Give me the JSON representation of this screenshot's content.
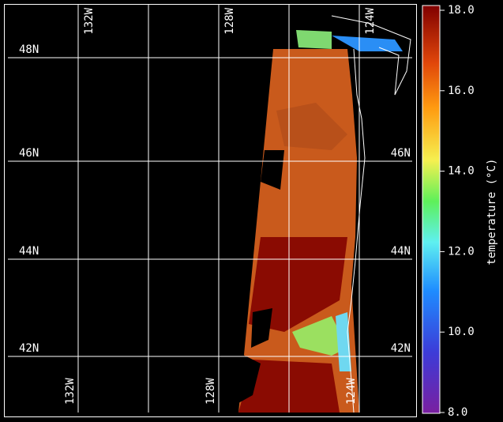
{
  "map": {
    "lat_lines": [
      {
        "value": 48,
        "label": "48N"
      },
      {
        "value": 46,
        "label": "46N"
      },
      {
        "value": 44,
        "label": "44N"
      },
      {
        "value": 42,
        "label": "42N"
      }
    ],
    "lon_lines": [
      {
        "value": -132,
        "label": "132W"
      },
      {
        "value": -128,
        "label": "128W"
      },
      {
        "value": -124,
        "label": "124W"
      }
    ]
  },
  "colorbar": {
    "label": "temperature (°C)",
    "lim": [
      8,
      18
    ],
    "ticks": [
      {
        "value": 8,
        "label": "8.0"
      },
      {
        "value": 10,
        "label": "10.0"
      },
      {
        "value": 12,
        "label": "12.0"
      },
      {
        "value": 14,
        "label": "14.0"
      },
      {
        "value": 16,
        "label": "16.0"
      },
      {
        "value": 18,
        "label": "18.0"
      }
    ]
  }
}
